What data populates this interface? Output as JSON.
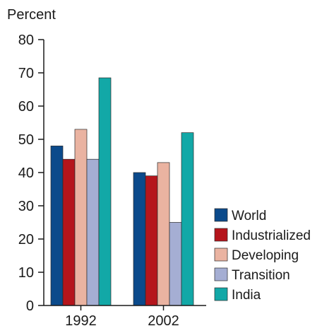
{
  "chart_data": {
    "type": "bar",
    "title": "",
    "ylabel": "Percent",
    "xlabel": "",
    "categories": [
      "1992",
      "2002"
    ],
    "ylim": [
      0,
      80
    ],
    "yticks": [
      0,
      10,
      20,
      30,
      40,
      50,
      60,
      70,
      80
    ],
    "grid": false,
    "legend_position": "right",
    "series": [
      {
        "name": "World",
        "values": [
          48,
          40
        ],
        "color": "#0b4a8b"
      },
      {
        "name": "Industrialized",
        "values": [
          44,
          39
        ],
        "color": "#b5151c"
      },
      {
        "name": "Developing",
        "values": [
          53,
          43
        ],
        "color": "#eab3a1"
      },
      {
        "name": "Transition",
        "values": [
          44,
          25
        ],
        "color": "#a5aed3"
      },
      {
        "name": "India",
        "values": [
          68.5,
          52
        ],
        "color": "#12a8a7"
      }
    ]
  }
}
